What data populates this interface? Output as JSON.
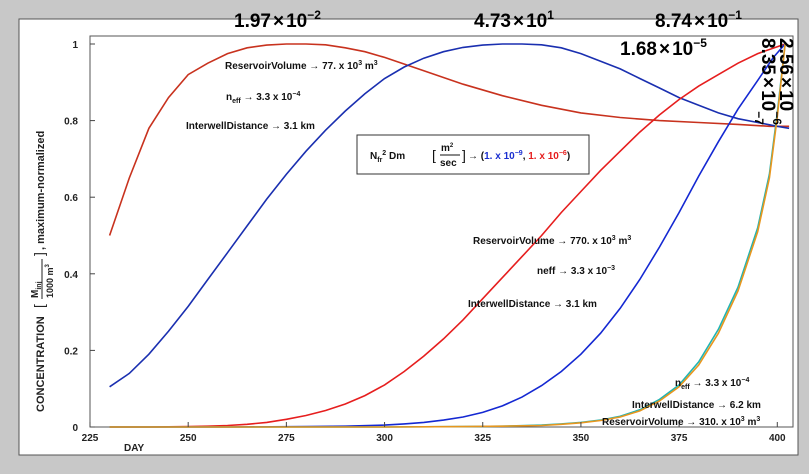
{
  "chart_data": {
    "type": "line",
    "xlabel": "DAY",
    "ylabel": {
      "prefix": "CONCENTRATION",
      "frac_num": "M",
      "frac_num_sub": "inj",
      "frac_den": "1000 m",
      "frac_den_sup": "3",
      "suffix": ",  maximum-normalized"
    },
    "xlim": [
      225,
      404
    ],
    "ylim": [
      0,
      1
    ],
    "x_ticks": [
      "225",
      "250",
      "275",
      "300",
      "325",
      "350",
      "375",
      "400"
    ],
    "y_ticks": [
      "0",
      "0.2",
      "0.4",
      "0.6",
      "0.8",
      "1"
    ],
    "grid": false,
    "series": [
      {
        "color": "#c8321e",
        "points": [
          [
            230,
            0.5
          ],
          [
            235,
            0.65
          ],
          [
            240,
            0.78
          ],
          [
            245,
            0.86
          ],
          [
            250,
            0.92
          ],
          [
            255,
            0.95
          ],
          [
            260,
            0.975
          ],
          [
            265,
            0.99
          ],
          [
            270,
            0.997
          ],
          [
            275,
            1.0
          ],
          [
            280,
            1.0
          ],
          [
            285,
            0.998
          ],
          [
            290,
            0.99
          ],
          [
            295,
            0.98
          ],
          [
            300,
            0.965
          ],
          [
            310,
            0.93
          ],
          [
            320,
            0.895
          ],
          [
            330,
            0.865
          ],
          [
            340,
            0.84
          ],
          [
            350,
            0.82
          ],
          [
            360,
            0.808
          ],
          [
            370,
            0.8
          ],
          [
            380,
            0.795
          ],
          [
            390,
            0.79
          ],
          [
            398,
            0.785
          ],
          [
            403,
            0.785
          ]
        ]
      },
      {
        "color": "#1a2fb0",
        "points": [
          [
            230,
            0.105
          ],
          [
            235,
            0.14
          ],
          [
            240,
            0.19
          ],
          [
            245,
            0.25
          ],
          [
            250,
            0.315
          ],
          [
            255,
            0.385
          ],
          [
            260,
            0.455
          ],
          [
            265,
            0.525
          ],
          [
            270,
            0.595
          ],
          [
            275,
            0.66
          ],
          [
            280,
            0.72
          ],
          [
            285,
            0.775
          ],
          [
            290,
            0.825
          ],
          [
            295,
            0.87
          ],
          [
            300,
            0.91
          ],
          [
            305,
            0.94
          ],
          [
            310,
            0.963
          ],
          [
            315,
            0.98
          ],
          [
            320,
            0.991
          ],
          [
            325,
            0.997
          ],
          [
            330,
            1.0
          ],
          [
            335,
            1.0
          ],
          [
            340,
            0.998
          ],
          [
            345,
            0.99
          ],
          [
            350,
            0.975
          ],
          [
            355,
            0.955
          ],
          [
            360,
            0.935
          ],
          [
            365,
            0.91
          ],
          [
            370,
            0.885
          ],
          [
            375,
            0.86
          ],
          [
            380,
            0.84
          ],
          [
            385,
            0.82
          ],
          [
            390,
            0.805
          ],
          [
            395,
            0.795
          ],
          [
            400,
            0.785
          ],
          [
            403,
            0.78
          ]
        ]
      },
      {
        "color": "#e61e1e",
        "points": [
          [
            230,
            0.0
          ],
          [
            240,
            0.0
          ],
          [
            250,
            0.001
          ],
          [
            255,
            0.002
          ],
          [
            260,
            0.004
          ],
          [
            265,
            0.007
          ],
          [
            270,
            0.012
          ],
          [
            275,
            0.02
          ],
          [
            280,
            0.03
          ],
          [
            285,
            0.043
          ],
          [
            290,
            0.06
          ],
          [
            295,
            0.082
          ],
          [
            300,
            0.11
          ],
          [
            305,
            0.145
          ],
          [
            310,
            0.185
          ],
          [
            315,
            0.23
          ],
          [
            320,
            0.28
          ],
          [
            325,
            0.335
          ],
          [
            330,
            0.39
          ],
          [
            335,
            0.445
          ],
          [
            340,
            0.5
          ],
          [
            345,
            0.56
          ],
          [
            350,
            0.615
          ],
          [
            355,
            0.67
          ],
          [
            360,
            0.72
          ],
          [
            365,
            0.77
          ],
          [
            370,
            0.815
          ],
          [
            375,
            0.855
          ],
          [
            380,
            0.89
          ],
          [
            385,
            0.92
          ],
          [
            390,
            0.95
          ],
          [
            395,
            0.975
          ],
          [
            400,
            0.993
          ],
          [
            402,
            1.0
          ]
        ]
      },
      {
        "color": "#1428d2",
        "points": [
          [
            230,
            0.0
          ],
          [
            260,
            0.0
          ],
          [
            280,
            0.001
          ],
          [
            290,
            0.002
          ],
          [
            300,
            0.005
          ],
          [
            305,
            0.008
          ],
          [
            310,
            0.012
          ],
          [
            315,
            0.018
          ],
          [
            320,
            0.026
          ],
          [
            325,
            0.038
          ],
          [
            330,
            0.055
          ],
          [
            335,
            0.078
          ],
          [
            340,
            0.108
          ],
          [
            345,
            0.145
          ],
          [
            350,
            0.19
          ],
          [
            355,
            0.245
          ],
          [
            360,
            0.31
          ],
          [
            365,
            0.385
          ],
          [
            370,
            0.47
          ],
          [
            375,
            0.56
          ],
          [
            380,
            0.655
          ],
          [
            385,
            0.745
          ],
          [
            390,
            0.83
          ],
          [
            395,
            0.905
          ],
          [
            399,
            0.965
          ],
          [
            402,
            1.0
          ]
        ]
      },
      {
        "color": "#20b4b4",
        "points": [
          [
            230,
            0.0
          ],
          [
            300,
            0.0
          ],
          [
            320,
            0.001
          ],
          [
            330,
            0.002
          ],
          [
            340,
            0.005
          ],
          [
            345,
            0.008
          ],
          [
            350,
            0.012
          ],
          [
            355,
            0.018
          ],
          [
            360,
            0.028
          ],
          [
            365,
            0.045
          ],
          [
            370,
            0.072
          ],
          [
            375,
            0.11
          ],
          [
            380,
            0.17
          ],
          [
            385,
            0.255
          ],
          [
            390,
            0.365
          ],
          [
            395,
            0.52
          ],
          [
            398,
            0.66
          ],
          [
            400,
            0.82
          ],
          [
            402,
            1.0
          ]
        ]
      },
      {
        "color": "#e8961e",
        "points": [
          [
            230,
            0.0
          ],
          [
            300,
            0.0
          ],
          [
            320,
            0.001
          ],
          [
            330,
            0.002
          ],
          [
            340,
            0.004
          ],
          [
            345,
            0.007
          ],
          [
            350,
            0.011
          ],
          [
            355,
            0.017
          ],
          [
            360,
            0.026
          ],
          [
            365,
            0.042
          ],
          [
            370,
            0.068
          ],
          [
            375,
            0.105
          ],
          [
            380,
            0.162
          ],
          [
            385,
            0.245
          ],
          [
            390,
            0.355
          ],
          [
            395,
            0.51
          ],
          [
            398,
            0.65
          ],
          [
            400,
            0.81
          ],
          [
            402,
            1.0
          ]
        ]
      }
    ],
    "top_labels": [
      {
        "mantissa": "1.97",
        "times": "×",
        "base": "10",
        "exp": "−2",
        "color": "#c8321e"
      },
      {
        "mantissa": "4.73",
        "times": "×",
        "base": "10",
        "exp": "1",
        "color": "#1a2fb0"
      },
      {
        "mantissa": "8.74",
        "times": "×",
        "base": "10",
        "exp": "−1",
        "color": "#1428d2"
      },
      {
        "mantissa": "1.68",
        "times": "×",
        "base": "10",
        "exp": "−5",
        "color": "#e61e1e"
      },
      {
        "mantissa": "2.56",
        "times": "×",
        "base": "10",
        "exp": "−6",
        "color": "#20b4b4"
      },
      {
        "mantissa": "8.35",
        "times": "×",
        "base": "10",
        "exp": "−7",
        "color": "#e8961e"
      }
    ],
    "annotations": {
      "set1": {
        "vol": "ReservoirVolume → 77. x 10",
        "vol_sup": "3",
        "vol_unit": " m",
        "vol_unit_sup": "3",
        "neff": "n",
        "neff_sub": "eff",
        "neff_val": " → 3.3 x 10",
        "neff_sup": "−4",
        "dist": "InterwellDistance → 3.1 km"
      },
      "set2": {
        "vol": "ReservoirVolume → 770. x 10",
        "vol_sup": "3",
        "vol_unit": " m",
        "vol_unit_sup": "3",
        "neff": "neff → 3.3 x 10",
        "neff_sup": "−3",
        "dist": "InterwellDistance → 3.1 km"
      },
      "set3": {
        "neff": "n",
        "neff_sub": "eff",
        "neff_val": " → 3.3 x 10",
        "neff_sup": "−4",
        "dist": "InterwellDistance → 6.2 km",
        "vol": "ReservoirVolume → 310. x 10",
        "vol_sup": "3",
        "vol_unit": " m",
        "vol_unit_sup": "3"
      }
    },
    "legend_box": {
      "n": "N",
      "n_sub": "fr",
      "n_sup": "2",
      "dm": " Dm ",
      "unit_num": "m",
      "unit_num_sup": "2",
      "unit_den": "sec",
      "arrow": " → (",
      "v1": "1. x 10",
      "v1_sup": "−9",
      "comma": ", ",
      "v2": "1. x 10",
      "v2_sup": "−6",
      "close": ")",
      "v1_color": "#1a2fd0",
      "v2_color": "#e61e1e"
    }
  }
}
